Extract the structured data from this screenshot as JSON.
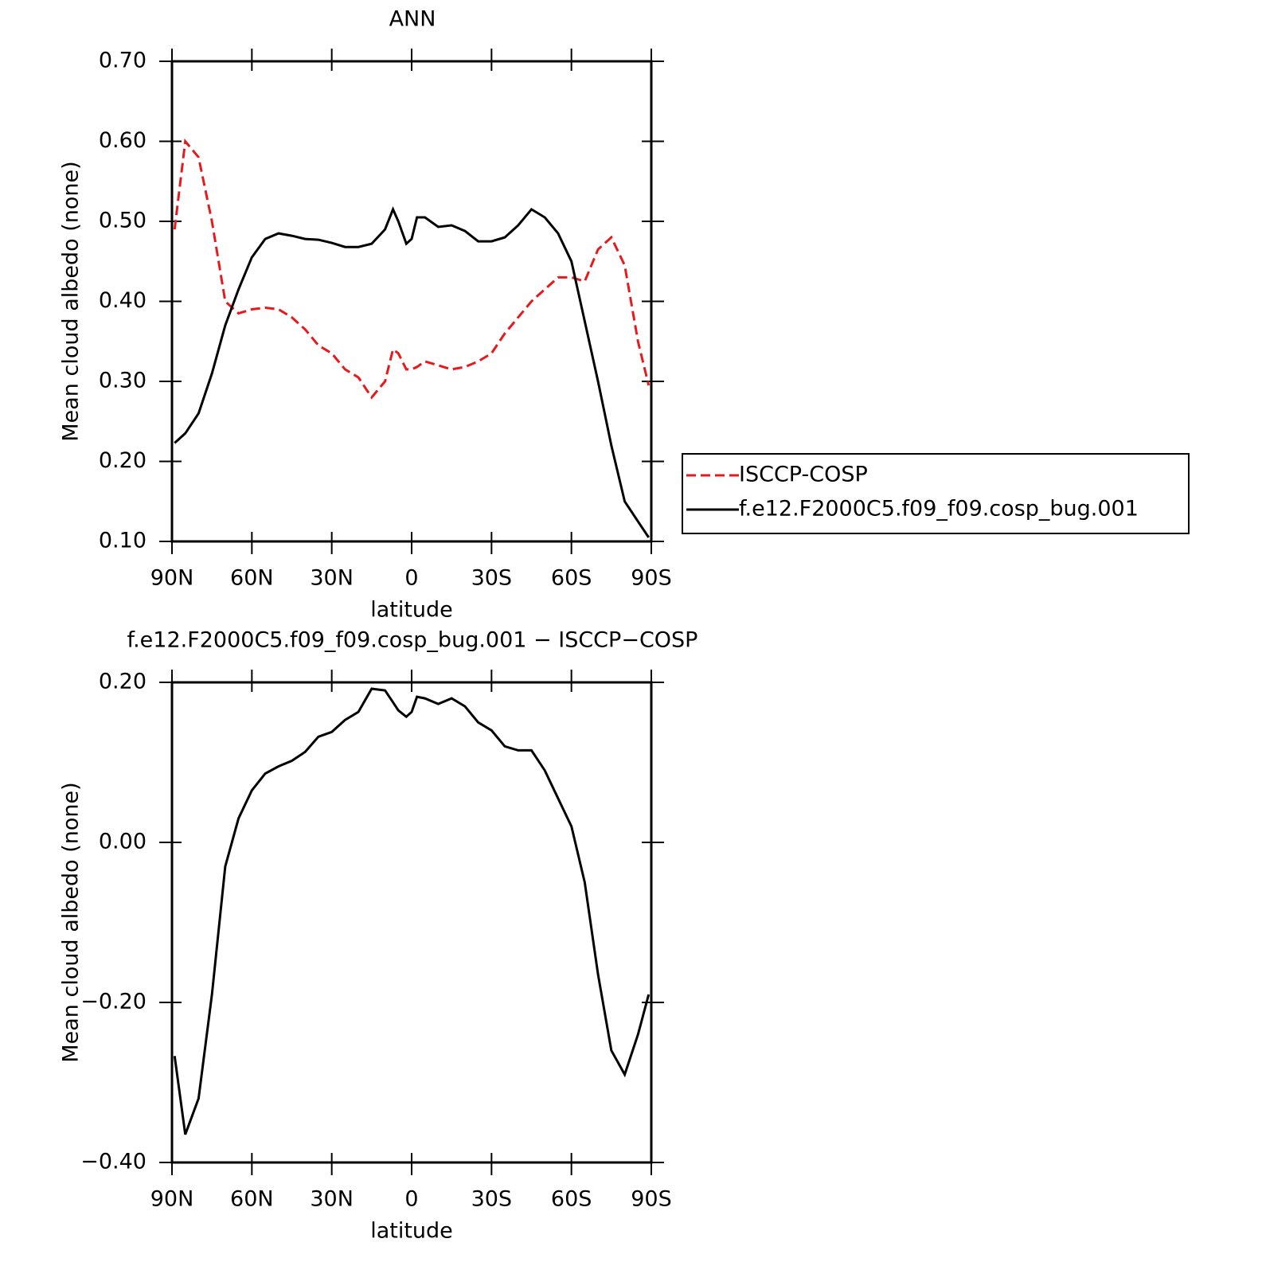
{
  "chart_data": [
    {
      "type": "line",
      "title": "ANN",
      "xlabel": "latitude",
      "ylabel": "Mean cloud albedo (none)",
      "x": [
        89,
        85,
        80,
        75,
        70,
        65,
        60,
        55,
        50,
        45,
        40,
        35,
        30,
        25,
        20,
        15,
        10,
        7,
        5,
        2,
        0,
        -2,
        -5,
        -10,
        -15,
        -20,
        -25,
        -30,
        -35,
        -40,
        -45,
        -50,
        -55,
        -60,
        -65,
        -70,
        -75,
        -80,
        -85,
        -89
      ],
      "xlim": [
        90,
        -90
      ],
      "xticks": [
        {
          "value": 90,
          "label": "90N"
        },
        {
          "value": 60,
          "label": "60N"
        },
        {
          "value": 30,
          "label": "30N"
        },
        0,
        {
          "value": -30,
          "label": "30S"
        },
        {
          "value": -60,
          "label": "60S"
        },
        {
          "value": -90,
          "label": "90S"
        }
      ],
      "ylim": [
        0.1,
        0.7
      ],
      "yticks": [
        {
          "value": 0.1,
          "label": "0.10"
        },
        {
          "value": 0.2,
          "label": "0.20"
        },
        {
          "value": 0.3,
          "label": "0.30"
        },
        {
          "value": 0.4,
          "label": "0.40"
        },
        {
          "value": 0.5,
          "label": "0.50"
        },
        {
          "value": 0.6,
          "label": "0.60"
        },
        {
          "value": 0.7,
          "label": "0.70"
        }
      ],
      "legend": "right",
      "series": [
        {
          "name": "ISCCP-COSP",
          "color": "#e8191c",
          "style": "dashed",
          "values": [
            0.49,
            0.6,
            0.58,
            0.5,
            0.4,
            0.385,
            0.39,
            0.392,
            0.39,
            0.38,
            0.365,
            0.345,
            0.335,
            0.315,
            0.305,
            0.28,
            0.3,
            0.34,
            0.335,
            0.315,
            0.315,
            0.318,
            0.325,
            0.32,
            0.315,
            0.318,
            0.325,
            0.335,
            0.36,
            0.38,
            0.4,
            0.415,
            0.43,
            0.43,
            0.425,
            0.465,
            0.48,
            0.445,
            0.35,
            0.295
          ]
        },
        {
          "name": "f.e12.F2000C5.f09_f09.cosp_bug.001",
          "color": "#000000",
          "style": "solid",
          "values": [
            0.223,
            0.235,
            0.26,
            0.31,
            0.37,
            0.415,
            0.455,
            0.478,
            0.485,
            0.482,
            0.478,
            0.477,
            0.473,
            0.468,
            0.468,
            0.472,
            0.49,
            0.515,
            0.5,
            0.472,
            0.478,
            0.505,
            0.505,
            0.493,
            0.495,
            0.488,
            0.475,
            0.475,
            0.48,
            0.495,
            0.515,
            0.505,
            0.485,
            0.45,
            0.375,
            0.3,
            0.22,
            0.15,
            0.125,
            0.105
          ]
        }
      ]
    },
    {
      "type": "line",
      "title": "f.e12.F2000C5.f09_f09.cosp_bug.001 − ISCCP−COSP",
      "xlabel": "latitude",
      "ylabel": "Mean cloud albedo (none)",
      "x": [
        89,
        85,
        80,
        75,
        70,
        65,
        60,
        55,
        50,
        45,
        40,
        35,
        30,
        25,
        20,
        15,
        10,
        7,
        5,
        2,
        0,
        -2,
        -5,
        -10,
        -15,
        -20,
        -25,
        -30,
        -35,
        -40,
        -45,
        -50,
        -55,
        -60,
        -65,
        -70,
        -75,
        -80,
        -85,
        -89
      ],
      "xlim": [
        90,
        -90
      ],
      "xticks": [
        {
          "value": 90,
          "label": "90N"
        },
        {
          "value": 60,
          "label": "60N"
        },
        {
          "value": 30,
          "label": "30N"
        },
        0,
        {
          "value": -30,
          "label": "30S"
        },
        {
          "value": -60,
          "label": "60S"
        },
        {
          "value": -90,
          "label": "90S"
        }
      ],
      "ylim": [
        -0.4,
        0.2
      ],
      "yticks": [
        {
          "value": -0.4,
          "label": "−0.40"
        },
        {
          "value": -0.2,
          "label": "−0.20"
        },
        {
          "value": 0,
          "label": "0.00"
        },
        {
          "value": 0.2,
          "label": "0.20"
        }
      ],
      "series": [
        {
          "color": "#000000",
          "style": "solid",
          "values": [
            -0.267,
            -0.365,
            -0.32,
            -0.19,
            -0.03,
            0.03,
            0.065,
            0.086,
            0.095,
            0.102,
            0.113,
            0.132,
            0.138,
            0.153,
            0.163,
            0.192,
            0.19,
            0.175,
            0.165,
            0.157,
            0.163,
            0.182,
            0.18,
            0.173,
            0.18,
            0.17,
            0.15,
            0.14,
            0.12,
            0.115,
            0.115,
            0.09,
            0.055,
            0.02,
            -0.05,
            -0.165,
            -0.26,
            -0.29,
            -0.24,
            -0.19
          ]
        }
      ]
    }
  ]
}
